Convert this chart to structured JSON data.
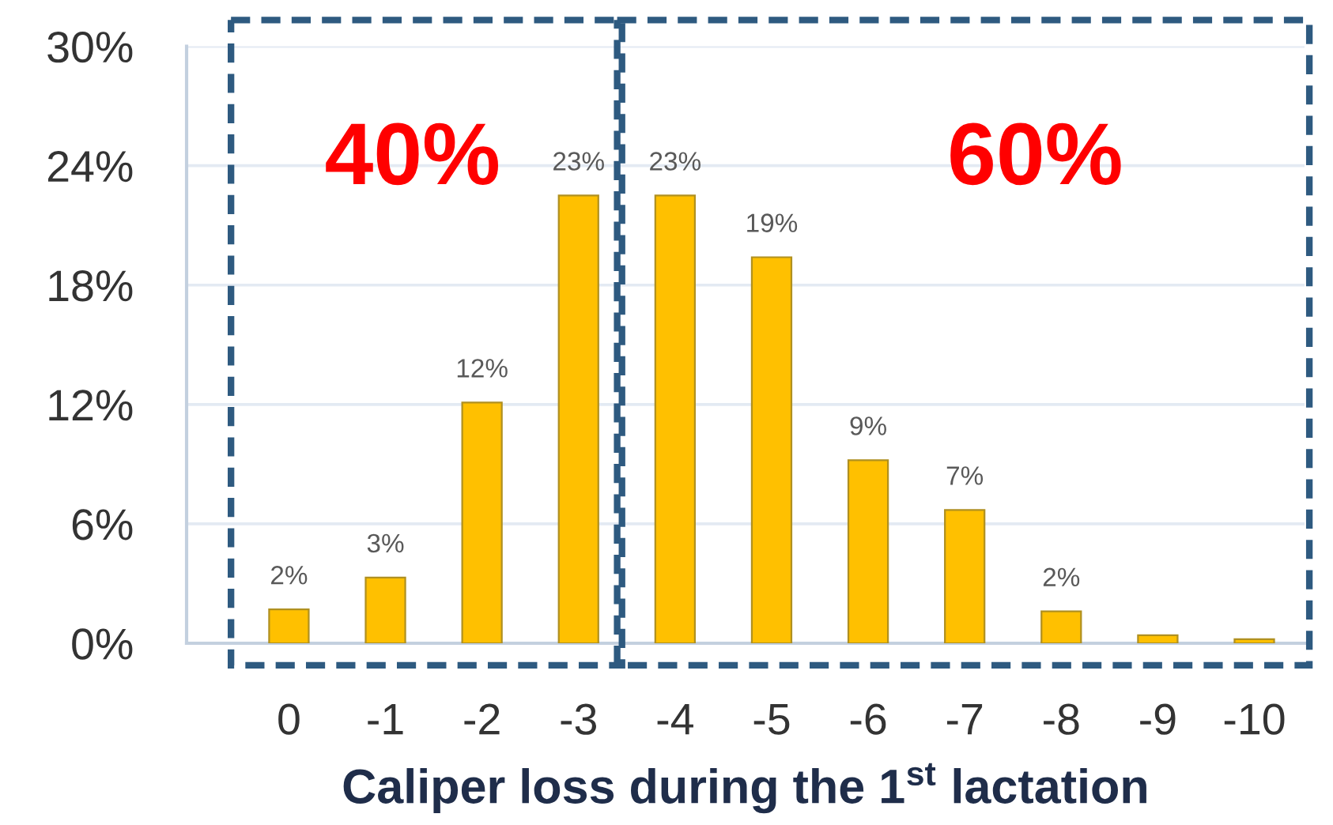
{
  "chart_data": {
    "type": "bar",
    "xlabel": "Caliper loss during the 1$^{st}$ lactation",
    "categories": [
      "0",
      "-1",
      "-2",
      "-3",
      "-4",
      "-5",
      "-6",
      "-7",
      "-8",
      "-9",
      "-10"
    ],
    "values": [
      1.7,
      3.3,
      12.1,
      22.5,
      22.5,
      19.4,
      9.2,
      6.7,
      1.6,
      0.4,
      0.2
    ],
    "color": "#ffc000",
    "value_labels": [
      "2%",
      "3%",
      "12%",
      "23%",
      "23%",
      "19%",
      "9%",
      "7%",
      "2%",
      null,
      null
    ],
    "ylim": [
      0,
      30
    ],
    "yticks": [
      {
        "value": 0,
        "label": "0%"
      },
      {
        "value": 6,
        "label": "6%"
      },
      {
        "value": 12,
        "label": "12%"
      },
      {
        "value": 18,
        "label": "18%"
      },
      {
        "value": 24,
        "label": "24%"
      },
      {
        "value": 30,
        "label": "30%"
      }
    ],
    "grid": "y",
    "annotations": [
      "40%",
      "60%"
    ]
  }
}
